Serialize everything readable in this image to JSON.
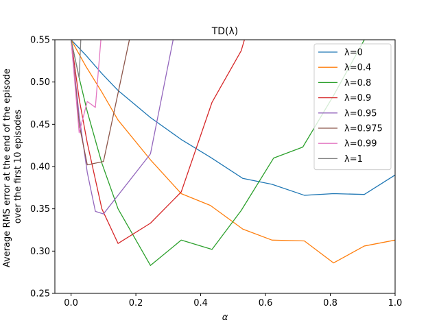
{
  "chart_data": {
    "type": "line",
    "title": "TD(λ)",
    "xlabel": "α",
    "ylabel_lines": [
      "Average RMS error at the end of the episode",
      "over the first 10 episodes"
    ],
    "xlim": [
      -0.05,
      1.0
    ],
    "ylim": [
      0.25,
      0.55
    ],
    "xticks": [
      0.0,
      0.2,
      0.4,
      0.6,
      0.8,
      1.0
    ],
    "xtick_labels": [
      "0.0",
      "0.2",
      "0.4",
      "0.6",
      "0.8",
      "1.0"
    ],
    "yticks": [
      0.25,
      0.3,
      0.35,
      0.4,
      0.45,
      0.5,
      0.55
    ],
    "ytick_labels": [
      "0.25",
      "0.30",
      "0.35",
      "0.40",
      "0.45",
      "0.50",
      "0.55"
    ],
    "grid": false,
    "legend_placement": "top-right",
    "series": [
      {
        "name": "λ=0",
        "color": "#1f77b4",
        "x": [
          0.0,
          0.045,
          0.095,
          0.145,
          0.245,
          0.34,
          0.43,
          0.53,
          0.62,
          0.72,
          0.81,
          0.905,
          1.0
        ],
        "y": [
          0.55,
          0.532,
          0.51,
          0.49,
          0.458,
          0.432,
          0.411,
          0.386,
          0.379,
          0.366,
          0.368,
          0.367,
          0.39
        ]
      },
      {
        "name": "λ=0.4",
        "color": "#ff7f0e",
        "x": [
          0.0,
          0.045,
          0.095,
          0.145,
          0.245,
          0.34,
          0.43,
          0.53,
          0.62,
          0.72,
          0.81,
          0.905,
          1.0
        ],
        "y": [
          0.55,
          0.519,
          0.488,
          0.455,
          0.408,
          0.368,
          0.354,
          0.326,
          0.313,
          0.312,
          0.286,
          0.306,
          0.313
        ]
      },
      {
        "name": "λ=0.8",
        "color": "#2ca02c",
        "x": [
          0.0,
          0.025,
          0.05,
          0.095,
          0.145,
          0.245,
          0.34,
          0.435,
          0.525,
          0.625,
          0.715,
          0.81,
          0.905
        ],
        "y": [
          0.55,
          0.505,
          0.465,
          0.404,
          0.35,
          0.283,
          0.313,
          0.302,
          0.348,
          0.41,
          0.423,
          0.484,
          0.55
        ]
      },
      {
        "name": "λ=0.9",
        "color": "#d62728",
        "x": [
          0.0,
          0.025,
          0.05,
          0.095,
          0.145,
          0.245,
          0.34,
          0.435,
          0.525,
          0.535
        ],
        "y": [
          0.55,
          0.48,
          0.428,
          0.35,
          0.309,
          0.333,
          0.37,
          0.476,
          0.537,
          0.55
        ]
      },
      {
        "name": "λ=0.95",
        "color": "#9467bd",
        "x": [
          0.0,
          0.025,
          0.05,
          0.075,
          0.1,
          0.245,
          0.315
        ],
        "y": [
          0.55,
          0.46,
          0.393,
          0.347,
          0.344,
          0.415,
          0.55
        ]
      },
      {
        "name": "λ=0.975",
        "color": "#8c564b",
        "x": [
          0.0,
          0.025,
          0.05,
          0.1,
          0.18
        ],
        "y": [
          0.55,
          0.45,
          0.402,
          0.406,
          0.55
        ]
      },
      {
        "name": "λ=0.99",
        "color": "#e377c2",
        "x": [
          0.0,
          0.025,
          0.05,
          0.075,
          0.092
        ],
        "y": [
          0.55,
          0.44,
          0.477,
          0.47,
          0.55
        ]
      },
      {
        "name": "λ=1",
        "color": "#7f7f7f",
        "x": [
          0.0,
          0.025,
          0.03
        ],
        "y": [
          0.55,
          0.505,
          0.55
        ]
      }
    ]
  }
}
